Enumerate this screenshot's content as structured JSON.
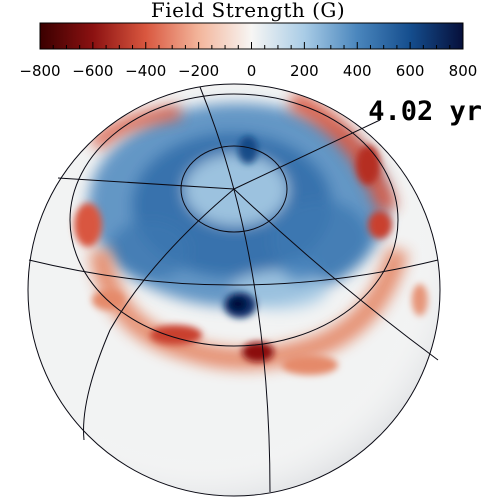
{
  "colorbar": {
    "title": "Field Strength (G)",
    "min": -800,
    "max": 800,
    "ticks": [
      "−800",
      "−600",
      "−400",
      "−200",
      "0",
      "200",
      "400",
      "600",
      "800"
    ],
    "tick_values": [
      -800,
      -600,
      -400,
      -200,
      0,
      200,
      400,
      600,
      800
    ],
    "colors": [
      "#3a0000",
      "#8b1111",
      "#d9573f",
      "#f3b59b",
      "#f7f6f4",
      "#a9cce6",
      "#4a86bd",
      "#154e8e",
      "#060f3a"
    ]
  },
  "time_label": "4.02 yr",
  "colors": {
    "negative_field": "#d9573f",
    "positive_field": "#4a86bd",
    "sphere_base": "#f2f3f3",
    "grid_lines": "#0a0a14"
  }
}
